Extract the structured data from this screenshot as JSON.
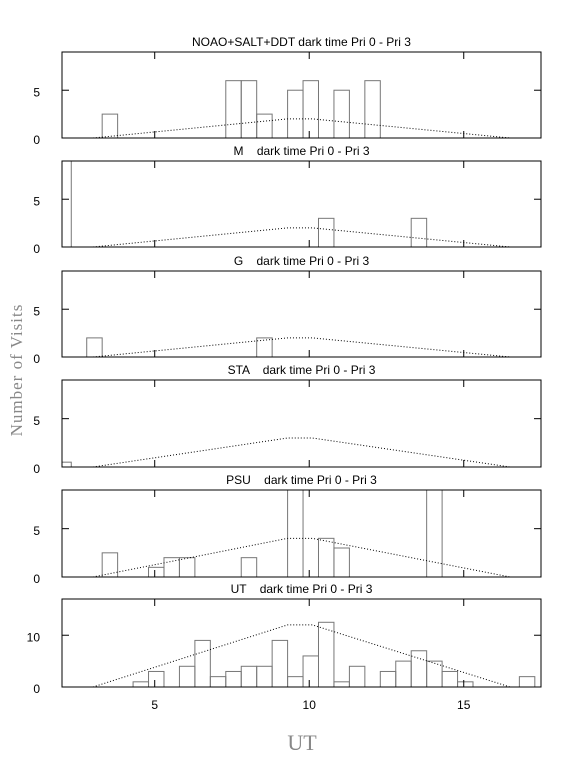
{
  "ylabel": "Number of Visits",
  "xlabel": "UT",
  "chart_data": [
    {
      "type": "histogram",
      "title": "NOAO+SALT+DDT dark time Pri 0 - Pri 3",
      "color": "#777777",
      "xlim": [
        2,
        17.5
      ],
      "ylim": [
        0,
        9
      ],
      "yticks": [
        0,
        5
      ],
      "bins": [
        1.8,
        2.3,
        2.8,
        3.3,
        3.8,
        4.3,
        4.8,
        5.3,
        5.8,
        6.3,
        6.8,
        7.3,
        7.8,
        8.3,
        8.8,
        9.3,
        9.8,
        10.3,
        10.8,
        11.3,
        11.8,
        12.3,
        12.8,
        13.3,
        13.8,
        14.3,
        14.8,
        15.3,
        15.8,
        16.3,
        16.8,
        17.3
      ],
      "values": [
        0,
        0,
        0,
        2.5,
        0,
        0,
        0,
        0,
        0,
        0,
        0,
        6,
        6,
        2.5,
        0,
        5,
        6,
        0,
        5,
        0,
        6,
        0,
        0,
        0,
        0,
        0,
        0,
        0,
        0,
        0,
        0
      ],
      "line": {
        "x": [
          3,
          9.3,
          10.1,
          16.5
        ],
        "values": [
          0,
          2,
          2,
          0
        ],
        "color": "#000000"
      }
    },
    {
      "type": "histogram",
      "title": "M    dark time Pri 0 - Pri 3",
      "color": "#777777",
      "xlim": [
        2,
        17.5
      ],
      "ylim": [
        0,
        9
      ],
      "yticks": [
        0,
        5
      ],
      "bins": [
        1.8,
        2.3,
        2.8,
        3.3,
        3.8,
        4.3,
        4.8,
        5.3,
        5.8,
        6.3,
        6.8,
        7.3,
        7.8,
        8.3,
        8.8,
        9.3,
        9.8,
        10.3,
        10.8,
        11.3,
        11.8,
        12.3,
        12.8,
        13.3,
        13.8,
        14.3,
        14.8,
        15.3,
        15.8,
        16.3,
        16.8,
        17.3
      ],
      "values": [
        9,
        0,
        0,
        0,
        0,
        0,
        0,
        0,
        0,
        0,
        0,
        0,
        0,
        0,
        0,
        0,
        0,
        3,
        0,
        0,
        0,
        0,
        0,
        3,
        0,
        0,
        0,
        0,
        0,
        0,
        0
      ],
      "line": {
        "x": [
          3,
          9.3,
          10.1,
          16.5
        ],
        "values": [
          0,
          2,
          2,
          0
        ],
        "color": "#000000"
      }
    },
    {
      "type": "histogram",
      "title": "G    dark time Pri 0 - Pri 3",
      "color": "#777777",
      "xlim": [
        2,
        17.5
      ],
      "ylim": [
        0,
        9
      ],
      "yticks": [
        0,
        5
      ],
      "bins": [
        1.8,
        2.3,
        2.8,
        3.3,
        3.8,
        4.3,
        4.8,
        5.3,
        5.8,
        6.3,
        6.8,
        7.3,
        7.8,
        8.3,
        8.8,
        9.3,
        9.8,
        10.3,
        10.8,
        11.3,
        11.8,
        12.3,
        12.8,
        13.3,
        13.8,
        14.3,
        14.8,
        15.3,
        15.8,
        16.3,
        16.8,
        17.3
      ],
      "values": [
        0,
        0,
        2,
        0,
        0,
        0,
        0,
        0,
        0,
        0,
        0,
        0,
        0,
        2,
        0,
        0,
        0,
        0,
        0,
        0,
        0,
        0,
        0,
        0,
        0,
        0,
        0,
        0,
        0,
        0,
        0
      ],
      "line": {
        "x": [
          3,
          9.3,
          10.1,
          16.5
        ],
        "values": [
          0,
          2,
          2,
          0
        ],
        "color": "#000000"
      }
    },
    {
      "type": "histogram",
      "title": "STA    dark time Pri 0 - Pri 3",
      "color": "#777777",
      "xlim": [
        2,
        17.5
      ],
      "ylim": [
        0,
        9
      ],
      "yticks": [
        0,
        5
      ],
      "bins": [
        1.8,
        2.3,
        2.8,
        3.3,
        3.8,
        4.3,
        4.8,
        5.3,
        5.8,
        6.3,
        6.8,
        7.3,
        7.8,
        8.3,
        8.8,
        9.3,
        9.8,
        10.3,
        10.8,
        11.3,
        11.8,
        12.3,
        12.8,
        13.3,
        13.8,
        14.3,
        14.8,
        15.3,
        15.8,
        16.3,
        16.8,
        17.3
      ],
      "values": [
        0.5,
        0,
        0,
        0,
        0,
        0,
        0,
        0,
        0,
        0,
        0,
        0,
        0,
        0,
        0,
        0,
        0,
        0,
        0,
        0,
        0,
        0,
        0,
        0,
        0,
        0,
        0,
        0,
        0,
        0,
        0
      ],
      "line": {
        "x": [
          3,
          9.3,
          10.1,
          16.5
        ],
        "values": [
          0,
          3,
          3,
          0
        ],
        "color": "#000000"
      }
    },
    {
      "type": "histogram",
      "title": "PSU    dark time Pri 0 - Pri 3",
      "color": "#777777",
      "xlim": [
        2,
        17.5
      ],
      "ylim": [
        0,
        9
      ],
      "yticks": [
        0,
        5
      ],
      "bins": [
        1.8,
        2.3,
        2.8,
        3.3,
        3.8,
        4.3,
        4.8,
        5.3,
        5.8,
        6.3,
        6.8,
        7.3,
        7.8,
        8.3,
        8.8,
        9.3,
        9.8,
        10.3,
        10.8,
        11.3,
        11.8,
        12.3,
        12.8,
        13.3,
        13.8,
        14.3,
        14.8,
        15.3,
        15.8,
        16.3,
        16.8,
        17.3
      ],
      "values": [
        0,
        0,
        0,
        2.5,
        0,
        0,
        1,
        2,
        2,
        0,
        0,
        0,
        2,
        0,
        0,
        9,
        0,
        4,
        3,
        0,
        0,
        0,
        0,
        0,
        9,
        0,
        0,
        0,
        0,
        0,
        0
      ],
      "line": {
        "x": [
          3,
          9.3,
          10.1,
          16.5
        ],
        "values": [
          0,
          4,
          4,
          0
        ],
        "color": "#000000"
      }
    },
    {
      "type": "histogram",
      "title": "UT    dark time Pri 0 - Pri 3",
      "color": "#777777",
      "xlim": [
        2,
        17.5
      ],
      "ylim": [
        0,
        17
      ],
      "yticks": [
        0,
        10
      ],
      "xticks": [
        5,
        10,
        15
      ],
      "bins": [
        1.8,
        2.3,
        2.8,
        3.3,
        3.8,
        4.3,
        4.8,
        5.3,
        5.8,
        6.3,
        6.8,
        7.3,
        7.8,
        8.3,
        8.8,
        9.3,
        9.8,
        10.3,
        10.8,
        11.3,
        11.8,
        12.3,
        12.8,
        13.3,
        13.8,
        14.3,
        14.8,
        15.3,
        15.8,
        16.3,
        16.8,
        17.3
      ],
      "values": [
        0,
        0,
        0,
        0,
        0,
        1,
        3,
        0,
        4,
        9,
        2,
        3,
        4,
        4,
        9,
        2,
        6,
        12.5,
        1,
        4,
        0,
        3,
        5,
        7,
        5,
        3,
        1,
        0,
        0,
        0,
        2
      ],
      "line": {
        "x": [
          3,
          9.3,
          10.1,
          16.5
        ],
        "values": [
          0,
          12,
          12,
          0
        ],
        "color": "#000000"
      }
    }
  ]
}
